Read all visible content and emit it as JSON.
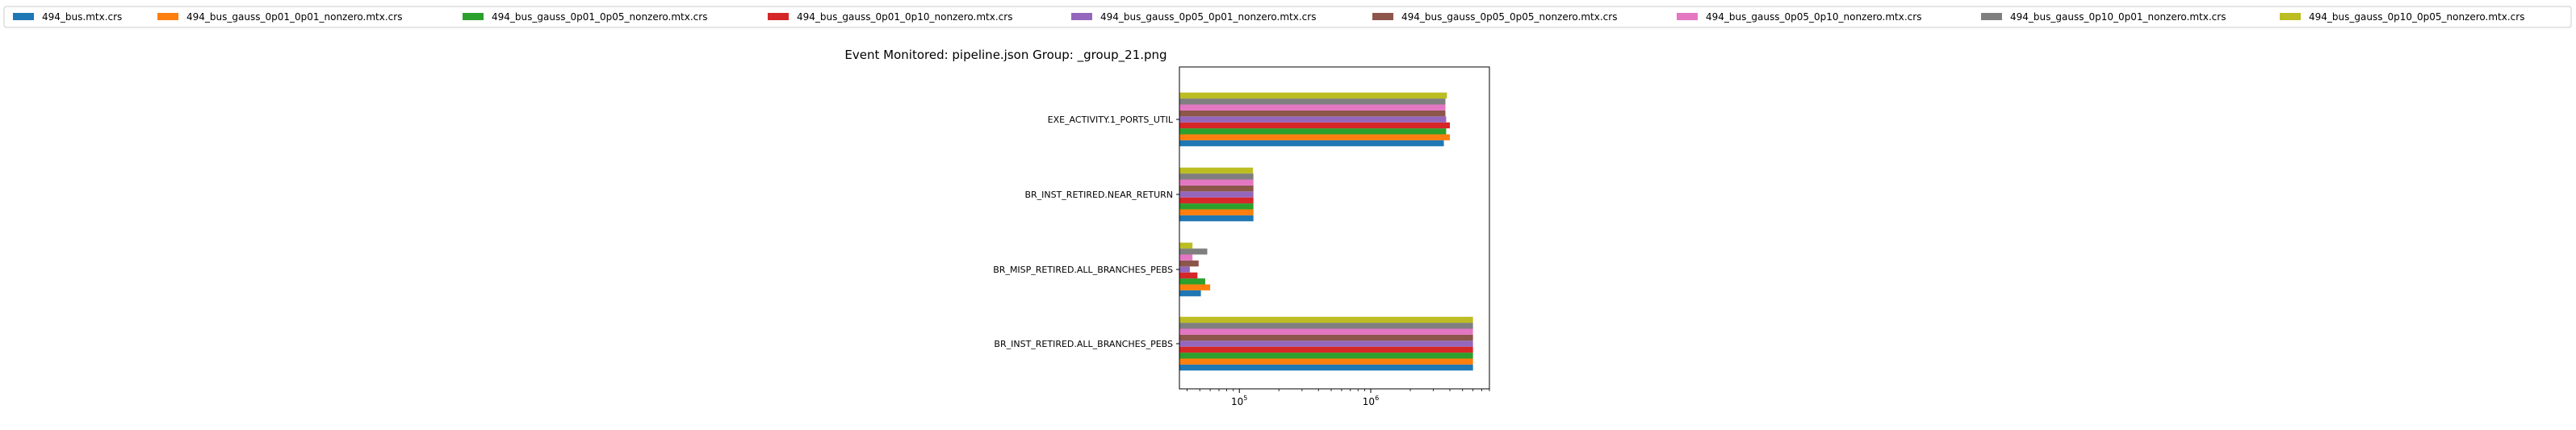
{
  "chart_data": {
    "type": "bar",
    "orientation": "horizontal",
    "title": "Event Monitored: pipeline.json Group: _group_21.png",
    "xlabel": "",
    "ylabel": "",
    "xscale": "log",
    "xlim": [
      35000,
      8000000
    ],
    "x_ticks": [
      {
        "value": 100000,
        "base": "10",
        "exp": "5"
      },
      {
        "value": 1000000,
        "base": "10",
        "exp": "6"
      }
    ],
    "grid": false,
    "legend_position": "top",
    "categories": [
      "BR_INST_RETIRED.ALL_BRANCHES_PEBS",
      "BR_MISP_RETIRED.ALL_BRANCHES_PEBS",
      "BR_INST_RETIRED.NEAR_RETURN",
      "EXE_ACTIVITY.1_PORTS_UTIL"
    ],
    "series": [
      {
        "name": "494_bus.mtx.crs",
        "color": "#1f77b4",
        "values": [
          6000000,
          51000,
          128000,
          3600000
        ]
      },
      {
        "name": "494_bus_gauss_0p01_0p01_nonzero.mtx.crs",
        "color": "#ff7f0e",
        "values": [
          6000000,
          60000,
          128000,
          4000000
        ]
      },
      {
        "name": "494_bus_gauss_0p01_0p05_nonzero.mtx.crs",
        "color": "#2ca02c",
        "values": [
          6000000,
          55000,
          128000,
          3750000
        ]
      },
      {
        "name": "494_bus_gauss_0p01_0p10_nonzero.mtx.crs",
        "color": "#d62728",
        "values": [
          6000000,
          48000,
          128000,
          4000000
        ]
      },
      {
        "name": "494_bus_gauss_0p05_0p01_nonzero.mtx.crs",
        "color": "#9467bd",
        "values": [
          6000000,
          42000,
          128000,
          3750000
        ]
      },
      {
        "name": "494_bus_gauss_0p05_0p05_nonzero.mtx.crs",
        "color": "#8c564b",
        "values": [
          6000000,
          49000,
          128000,
          3700000
        ]
      },
      {
        "name": "494_bus_gauss_0p05_0p10_nonzero.mtx.crs",
        "color": "#e377c2",
        "values": [
          6000000,
          44000,
          128000,
          3700000
        ]
      },
      {
        "name": "494_bus_gauss_0p10_0p01_nonzero.mtx.crs",
        "color": "#7f7f7f",
        "values": [
          6000000,
          57000,
          128000,
          3700000
        ]
      },
      {
        "name": "494_bus_gauss_0p10_0p05_nonzero.mtx.crs",
        "color": "#bcbd22",
        "values": [
          6000000,
          44000,
          127000,
          3800000
        ]
      }
    ]
  }
}
